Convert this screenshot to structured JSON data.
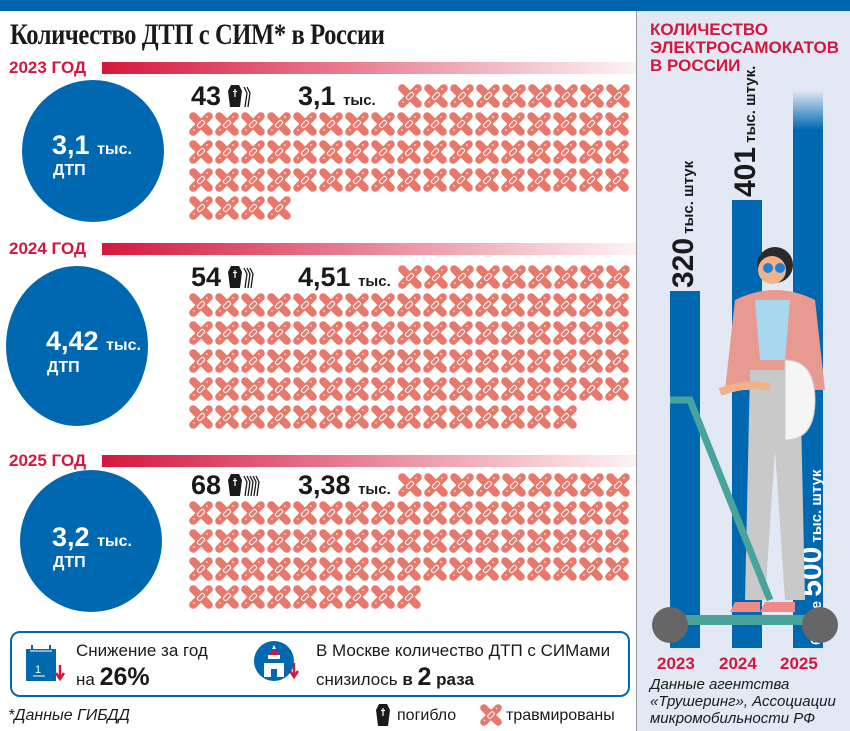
{
  "title": "Количество ДТП с СИМ* в России",
  "years": [
    {
      "label": "2023 ГОД",
      "accidents": "3,1",
      "accidents_unit": "тыс.",
      "accidents_caption": "ДТП",
      "deaths": "43",
      "injured": "3,1",
      "injured_unit": "тыс."
    },
    {
      "label": "2024 ГОД",
      "accidents": "4,42",
      "accidents_unit": "тыс.",
      "accidents_caption": "ДТП",
      "deaths": "54",
      "injured": "4,51",
      "injured_unit": "тыс."
    },
    {
      "label": "2025 ГОД",
      "accidents": "3,2",
      "accidents_unit": "тыс.",
      "accidents_caption": "ДТП",
      "deaths": "68",
      "injured": "3,38",
      "injured_unit": "тыс."
    }
  ],
  "info": {
    "decline_line1": "Снижение за год",
    "decline_prefix": "на",
    "decline_value": "26%",
    "moscow_line1": "В Москве количество ДТП с СИМами",
    "moscow_prefix": "снизилось",
    "moscow_b": "в",
    "moscow_value": "2",
    "moscow_suffix": "раза"
  },
  "footnote": "*Данные ГИБДД",
  "legend": {
    "dead": "погибло",
    "injured": "травмированы"
  },
  "colors": {
    "blue": "#0068b0",
    "red": "#d4183d",
    "bandage": "#e8786c",
    "panel": "#e2e9f4"
  },
  "chart_data": {
    "type": "bar",
    "title": "КОЛИЧЕСТВО ЭЛЕКТРОСАМОКАТОВ В РОССИИ",
    "categories": [
      "2023",
      "2024",
      "2025"
    ],
    "values": [
      320,
      401,
      500
    ],
    "labels": [
      {
        "prefix": "",
        "value": "320",
        "unit": "тыс. штук"
      },
      {
        "prefix": "",
        "value": "401",
        "unit": "тыс. штук."
      },
      {
        "prefix": "более",
        "value": "500",
        "unit": "тыс. штук"
      }
    ],
    "source": "Данные агентства «Трушеринг», Ассоциации микромобильности РФ"
  }
}
